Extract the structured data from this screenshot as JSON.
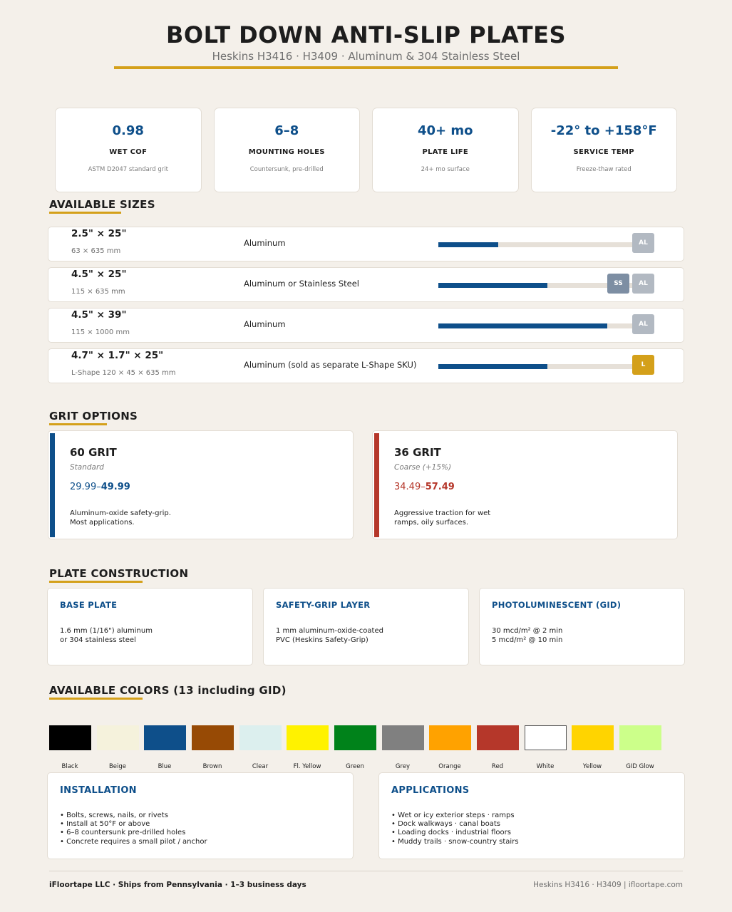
{
  "header": {
    "title": "BOLT DOWN ANTI-SLIP PLATES",
    "subtitle": "Heskins H3416 · H3409 · Aluminum & 304 Stainless Steel"
  },
  "stats": [
    {
      "value": "0.98",
      "label": "WET COF",
      "sub": "ASTM D2047 standard grit"
    },
    {
      "value": "6–8",
      "label": "MOUNTING HOLES",
      "sub": "Countersunk, pre-drilled"
    },
    {
      "value": "40+ mo",
      "label": "PLATE LIFE",
      "sub": "24+ mo surface"
    },
    {
      "value": "-22° to +158°F",
      "label": "SERVICE TEMP",
      "sub": "Freeze-thaw rated"
    }
  ],
  "sizes": {
    "title": "AVAILABLE SIZES",
    "rows": [
      {
        "dim": "2.5\" × 25\"",
        "metric": "63 × 635 mm",
        "material": "Aluminum",
        "bar_fraction": 0.28,
        "badges": [
          {
            "text": "AL",
            "kind": "al"
          }
        ]
      },
      {
        "dim": "4.5\" × 25\"",
        "metric": "115 × 635 mm",
        "material": "Aluminum or Stainless Steel",
        "bar_fraction": 0.51,
        "badges": [
          {
            "text": "SS",
            "kind": "ss"
          },
          {
            "text": "AL",
            "kind": "al"
          }
        ]
      },
      {
        "dim": "4.5\" × 39\"",
        "metric": "115 × 1000 mm",
        "material": "Aluminum",
        "bar_fraction": 0.79,
        "badges": [
          {
            "text": "AL",
            "kind": "al"
          }
        ]
      },
      {
        "dim": "4.7\" × 1.7\" × 25\"",
        "metric": "L-Shape 120 × 45 × 635 mm",
        "material": "Aluminum (sold as separate L-Shape SKU)",
        "bar_fraction": 0.51,
        "badges": [
          {
            "text": "L",
            "kind": "l"
          }
        ]
      }
    ]
  },
  "grit": {
    "title": "GRIT OPTIONS",
    "options": [
      {
        "name": "60 GRIT",
        "type": "Standard",
        "price_low": "29.99–",
        "price_high": "49.99",
        "desc": "Aluminum-oxide safety-grip.\nMost applications.",
        "color": "#0e4f8a"
      },
      {
        "name": "36 GRIT",
        "type": "Coarse (+15%)",
        "price_low": "34.49–",
        "price_high": "57.49",
        "desc": "Aggressive traction for wet\nramps, oily surfaces.",
        "color": "#b5372a"
      }
    ]
  },
  "construction": {
    "title": "PLATE CONSTRUCTION",
    "cards": [
      {
        "title": "BASE PLATE",
        "body": "1.6 mm (1/16\") aluminum\nor 304 stainless steel"
      },
      {
        "title": "SAFETY-GRIP LAYER",
        "body": "1 mm aluminum-oxide-coated\nPVC (Heskins Safety-Grip)"
      },
      {
        "title": "PHOTOLUMINESCENT (GID)",
        "body": "30 mcd/m² @ 2 min\n5 mcd/m² @ 10 min"
      }
    ]
  },
  "colors": {
    "title": "AVAILABLE COLORS  (13 including GID)",
    "items": [
      {
        "name": "Black",
        "hex": "#000000"
      },
      {
        "name": "Beige",
        "hex": "#f5f2dc"
      },
      {
        "name": "Blue",
        "hex": "#0e4f8a"
      },
      {
        "name": "Brown",
        "hex": "#974a05"
      },
      {
        "name": "Clear",
        "hex": "#dcefee"
      },
      {
        "name": "Fl. Yellow",
        "hex": "#fff200"
      },
      {
        "name": "Green",
        "hex": "#00821a"
      },
      {
        "name": "Grey",
        "hex": "#808080"
      },
      {
        "name": "Orange",
        "hex": "#ffa200"
      },
      {
        "name": "Red",
        "hex": "#b5372a"
      },
      {
        "name": "White",
        "hex": "#ffffff"
      },
      {
        "name": "Yellow",
        "hex": "#ffd400"
      },
      {
        "name": "GID Glow",
        "hex": "#ccff8a"
      }
    ]
  },
  "installation": {
    "title": "INSTALLATION",
    "items": [
      "• Bolts, screws, nails, or rivets",
      "• Install at 50°F or above",
      "• 6–8 countersunk pre-drilled holes",
      "• Concrete requires a small pilot / anchor"
    ]
  },
  "applications": {
    "title": "APPLICATIONS",
    "items": [
      "• Wet or icy exterior steps · ramps",
      "• Dock walkways · canal boats",
      "• Loading docks · industrial floors",
      "• Muddy trails · snow-country stairs"
    ]
  },
  "footer": {
    "left": "iFloortape LLC · Ships from Pennsylvania · 1–3 business days",
    "right": "Heskins H3416 · H3409  |  ifloortape.com"
  },
  "theme": {
    "accent": "#d4a01a",
    "primary": "#0e4f8a",
    "background": "#f4f0ea"
  }
}
